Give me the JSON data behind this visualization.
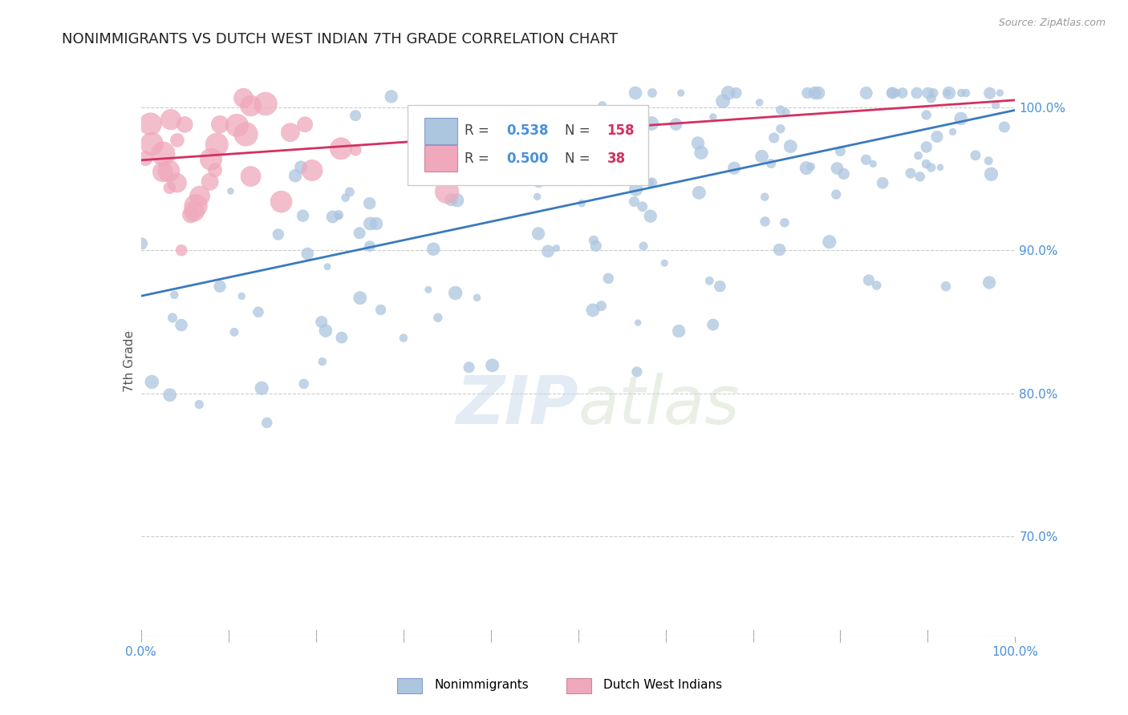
{
  "title": "NONIMMIGRANTS VS DUTCH WEST INDIAN 7TH GRADE CORRELATION CHART",
  "source": "Source: ZipAtlas.com",
  "ylabel": "7th Grade",
  "blue_R": 0.538,
  "blue_N": 158,
  "pink_R": 0.5,
  "pink_N": 38,
  "blue_color": "#adc6e0",
  "pink_color": "#f0a8bc",
  "blue_line_color": "#3a7abf",
  "pink_line_color": "#d43060",
  "xlim": [
    0.0,
    1.0
  ],
  "ylim_low": 0.63,
  "ylim_high": 1.015,
  "y_ticks_right": [
    0.7,
    0.8,
    0.9,
    1.0
  ],
  "y_tick_labels_right": [
    "70.0%",
    "80.0%",
    "90.0%",
    "100.0%"
  ],
  "title_color": "#222222",
  "axis_label_color": "#555555",
  "tick_color": "#4a90d9",
  "legend_N_color": "#d43060",
  "background_color": "#ffffff",
  "grid_color": "#cccccc",
  "blue_trend_x0": 0.0,
  "blue_trend_y0": 0.868,
  "blue_trend_x1": 1.0,
  "blue_trend_y1": 0.998,
  "pink_trend_x0": 0.0,
  "pink_trend_y0": 0.963,
  "pink_trend_x1": 1.0,
  "pink_trend_y1": 1.005
}
